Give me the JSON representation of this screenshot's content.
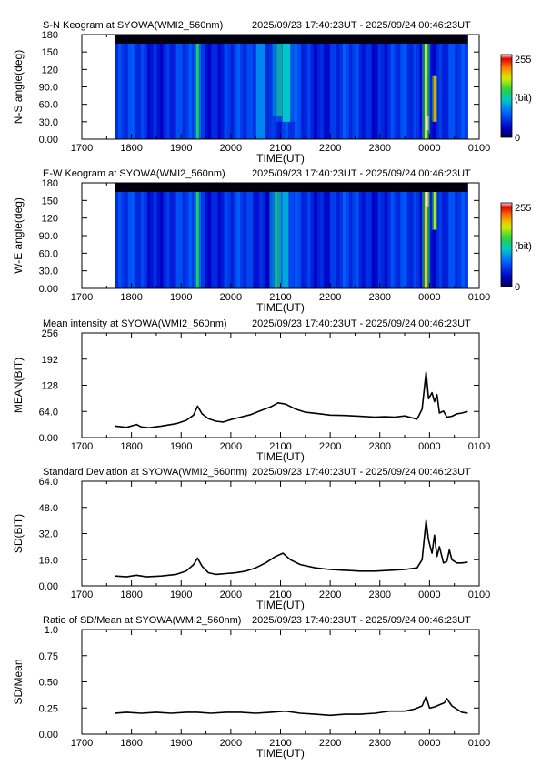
{
  "chart_data": [
    {
      "type": "heatmap",
      "title": "S-N Keogram at SYOWA(WMI2_560nm)",
      "time_range": "2025/09/23 17:40:23UT - 2025/09/24 00:46:23UT",
      "ylabel": "N-S angle(deg)",
      "xlabel": "TIME(UT)",
      "x_ticks": [
        "1700",
        "1800",
        "1900",
        "2000",
        "2100",
        "2200",
        "2300",
        "0000",
        "0100"
      ],
      "y_ticks": [
        "0.00",
        "30.0",
        "60.0",
        "90.0",
        "120",
        "150",
        "180"
      ],
      "ylim": [
        0,
        180
      ],
      "data_start_x": 17.67,
      "data_end_x": 24.77,
      "colorbar": {
        "min_label": "0",
        "max_label": "255",
        "unit_label": "(bit)"
      },
      "features": [
        {
          "x": 19.33,
          "intensity": 0.55,
          "width": 0.05,
          "y_from": 0,
          "y_to": 180
        },
        {
          "x": 20.6,
          "intensity": 0.35,
          "width": 0.18,
          "y_from": 0,
          "y_to": 180
        },
        {
          "x": 20.98,
          "intensity": 0.55,
          "width": 0.1,
          "y_from": 40,
          "y_to": 180
        },
        {
          "x": 21.12,
          "intensity": 0.45,
          "width": 0.15,
          "y_from": 30,
          "y_to": 180
        },
        {
          "x": 23.93,
          "intensity": 0.7,
          "width": 0.06,
          "y_from": 0,
          "y_to": 180
        },
        {
          "x": 24.1,
          "intensity": 0.8,
          "width": 0.04,
          "y_from": 30,
          "y_to": 110
        },
        {
          "x": 23.95,
          "intensity": 1.0,
          "width": 0.03,
          "y_from": 15,
          "y_to": 40
        }
      ]
    },
    {
      "type": "heatmap",
      "title": "E-W Keogram at SYOWA(WMI2_560nm)",
      "time_range": "2025/09/23 17:40:23UT - 2025/09/24 00:46:23UT",
      "ylabel": "W-E angle(deg)",
      "xlabel": "TIME(UT)",
      "x_ticks": [
        "1700",
        "1800",
        "1900",
        "2000",
        "2100",
        "2200",
        "2300",
        "0000",
        "0100"
      ],
      "y_ticks": [
        "0.00",
        "30.0",
        "60.0",
        "90.0",
        "120",
        "150",
        "180"
      ],
      "ylim": [
        0,
        180
      ],
      "data_start_x": 17.67,
      "data_end_x": 24.77,
      "colorbar": {
        "min_label": "0",
        "max_label": "255",
        "unit_label": "(bit)"
      },
      "features": [
        {
          "x": 19.33,
          "intensity": 0.55,
          "width": 0.05,
          "y_from": 0,
          "y_to": 180
        },
        {
          "x": 20.95,
          "intensity": 0.55,
          "width": 0.12,
          "y_from": 0,
          "y_to": 180
        },
        {
          "x": 21.1,
          "intensity": 0.4,
          "width": 0.12,
          "y_from": 0,
          "y_to": 180
        },
        {
          "x": 23.93,
          "intensity": 0.75,
          "width": 0.06,
          "y_from": 0,
          "y_to": 180
        },
        {
          "x": 23.95,
          "intensity": 1.0,
          "width": 0.03,
          "y_from": 140,
          "y_to": 175
        },
        {
          "x": 24.1,
          "intensity": 0.7,
          "width": 0.04,
          "y_from": 100,
          "y_to": 175
        }
      ]
    },
    {
      "type": "line",
      "title": "Mean intensity at SYOWA(WMI2_560nm)",
      "time_range": "2025/09/23 17:40:23UT - 2025/09/24 00:46:23UT",
      "ylabel": "MEAN(BIT)",
      "xlabel": "TIME(UT)",
      "x_ticks": [
        "1700",
        "1800",
        "1900",
        "2000",
        "2100",
        "2200",
        "2300",
        "0000",
        "0100"
      ],
      "y_ticks": [
        "0.00",
        "64.0",
        "128",
        "192",
        "256"
      ],
      "ylim": [
        0,
        256
      ],
      "x": [
        17.67,
        17.9,
        18.1,
        18.2,
        18.35,
        18.6,
        18.9,
        19.1,
        19.25,
        19.33,
        19.42,
        19.55,
        19.7,
        19.85,
        20.0,
        20.2,
        20.4,
        20.6,
        20.8,
        20.95,
        21.1,
        21.3,
        21.5,
        21.8,
        22.0,
        22.3,
        22.6,
        22.9,
        23.1,
        23.3,
        23.5,
        23.75,
        23.85,
        23.93,
        23.98,
        24.05,
        24.1,
        24.15,
        24.2,
        24.28,
        24.35,
        24.45,
        24.55,
        24.65,
        24.77
      ],
      "values": [
        28,
        25,
        32,
        26,
        24,
        28,
        34,
        42,
        55,
        77,
        58,
        46,
        40,
        38,
        44,
        50,
        56,
        66,
        75,
        85,
        82,
        70,
        62,
        58,
        55,
        54,
        52,
        50,
        51,
        50,
        53,
        45,
        70,
        160,
        95,
        110,
        88,
        105,
        60,
        65,
        50,
        52,
        58,
        60,
        64
      ]
    },
    {
      "type": "line",
      "title": "Standard Deviation at SYOWA(WMI2_560nm)",
      "time_range": "2025/09/23 17:40:23UT - 2025/09/24 00:46:23UT",
      "ylabel": "SD(BIT)",
      "xlabel": "TIME(UT)",
      "x_ticks": [
        "1700",
        "1800",
        "1900",
        "2000",
        "2100",
        "2200",
        "2300",
        "0000",
        "0100"
      ],
      "y_ticks": [
        "0.00",
        "16.0",
        "32.0",
        "48.0",
        "64.0"
      ],
      "ylim": [
        0,
        64
      ],
      "x": [
        17.67,
        17.9,
        18.1,
        18.3,
        18.6,
        18.9,
        19.1,
        19.25,
        19.33,
        19.42,
        19.55,
        19.7,
        19.9,
        20.1,
        20.3,
        20.5,
        20.7,
        20.9,
        21.05,
        21.2,
        21.4,
        21.7,
        22.0,
        22.3,
        22.6,
        22.9,
        23.2,
        23.5,
        23.75,
        23.85,
        23.93,
        23.98,
        24.05,
        24.1,
        24.15,
        24.2,
        24.28,
        24.35,
        24.4,
        24.45,
        24.55,
        24.65,
        24.77
      ],
      "values": [
        6,
        5.5,
        6.5,
        5.5,
        6,
        7,
        9,
        13,
        17,
        12,
        8,
        7,
        7.5,
        8,
        9,
        11,
        14,
        18,
        20,
        16,
        13,
        11,
        10,
        9.5,
        9,
        9,
        9.5,
        10,
        11,
        16,
        40,
        28,
        20,
        31,
        18,
        24,
        14,
        15,
        22,
        16,
        14,
        14,
        14.5
      ]
    },
    {
      "type": "line",
      "title": "Ratio of SD/Mean at SYOWA(WMI2_560nm)",
      "time_range": "2025/09/23 17:40:23UT - 2025/09/24 00:46:23UT",
      "ylabel": "SD/Mean",
      "xlabel": "TIME(UT)",
      "x_ticks": [
        "1700",
        "1800",
        "1900",
        "2000",
        "2100",
        "2200",
        "2300",
        "0000",
        "0100"
      ],
      "y_ticks": [
        "0.00",
        "0.25",
        "0.50",
        "0.75",
        "1.0"
      ],
      "ylim": [
        0,
        1
      ],
      "x": [
        17.67,
        17.9,
        18.2,
        18.5,
        18.8,
        19.1,
        19.33,
        19.6,
        19.9,
        20.2,
        20.5,
        20.8,
        21.1,
        21.4,
        21.7,
        22.0,
        22.3,
        22.6,
        22.9,
        23.2,
        23.5,
        23.7,
        23.85,
        23.93,
        24.0,
        24.1,
        24.2,
        24.3,
        24.35,
        24.45,
        24.55,
        24.65,
        24.77
      ],
      "values": [
        0.2,
        0.21,
        0.2,
        0.21,
        0.2,
        0.21,
        0.21,
        0.2,
        0.21,
        0.21,
        0.2,
        0.21,
        0.22,
        0.2,
        0.19,
        0.18,
        0.19,
        0.19,
        0.2,
        0.22,
        0.22,
        0.24,
        0.27,
        0.36,
        0.25,
        0.26,
        0.28,
        0.3,
        0.34,
        0.27,
        0.24,
        0.21,
        0.2
      ]
    }
  ]
}
